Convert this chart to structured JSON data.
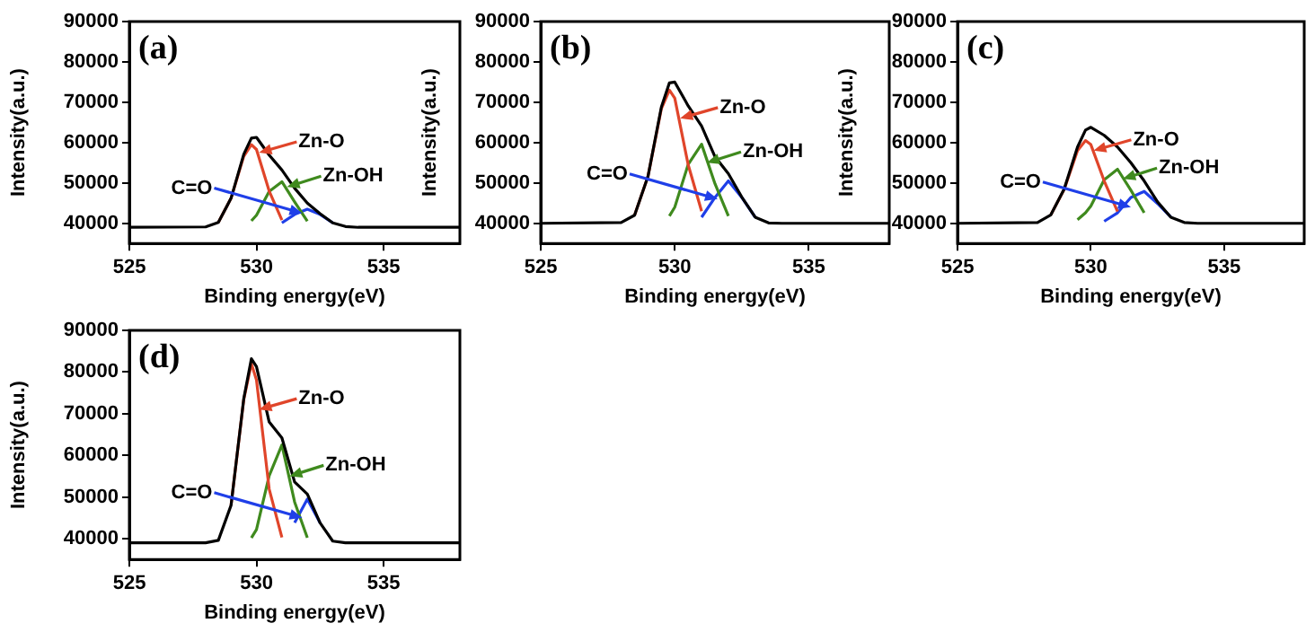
{
  "chart_data": [
    {
      "type": "line",
      "title": "(a)",
      "xlabel": "Binding energy(eV)",
      "ylabel": "Intensity(a.u.)",
      "xlim": [
        525,
        538
      ],
      "xticks": [
        525,
        530,
        535
      ],
      "ylim": [
        35000,
        90000
      ],
      "yticks": [
        40000,
        50000,
        60000,
        70000,
        80000,
        90000
      ],
      "grid": false,
      "legend": false,
      "marker": "none",
      "line_style": "solid",
      "x": [
        525,
        528,
        528.5,
        529,
        529.5,
        529.8,
        530,
        530.5,
        531,
        531.5,
        532,
        532.5,
        533,
        533.5,
        534,
        538
      ],
      "series": [
        {
          "color": "#000000",
          "values": [
            39000,
            39100,
            40200,
            46200,
            57100,
            61100,
            61300,
            56900,
            53200,
            48700,
            45000,
            42400,
            40100,
            39200,
            39000,
            39000
          ]
        },
        {
          "color": "#e0452a",
          "values": [
            null,
            null,
            40200,
            46200,
            56600,
            59500,
            58300,
            48000,
            40800,
            null,
            null,
            null,
            null,
            null,
            null,
            null
          ]
        },
        {
          "color": "#3f8a1e",
          "values": [
            null,
            null,
            null,
            null,
            null,
            40600,
            42000,
            47900,
            50300,
            45300,
            40500,
            null,
            null,
            null,
            null,
            null
          ]
        },
        {
          "color": "#1f3fe8",
          "values": [
            null,
            null,
            null,
            null,
            null,
            null,
            null,
            null,
            40100,
            42200,
            43500,
            42200,
            40100,
            null,
            null,
            null
          ]
        }
      ],
      "annotations": [
        {
          "text": "Zn-O",
          "x": 530.1,
          "y": 57500
        },
        {
          "text": "Zn-OH",
          "x": 531.2,
          "y": 49000
        },
        {
          "text": "C=O",
          "x": 531.8,
          "y": 42500
        }
      ]
    },
    {
      "type": "line",
      "title": "(b)",
      "xlabel": "Binding energy(eV)",
      "ylabel": "Intensity(a.u.)",
      "xlim": [
        525,
        538
      ],
      "xticks": [
        525,
        530,
        535
      ],
      "ylim": [
        35000,
        90000
      ],
      "yticks": [
        40000,
        50000,
        60000,
        70000,
        80000,
        90000
      ],
      "grid": false,
      "legend": false,
      "marker": "none",
      "line_style": "solid",
      "x": [
        525,
        528,
        528.5,
        529,
        529.5,
        529.8,
        530,
        530.5,
        531,
        531.5,
        532,
        532.5,
        533,
        533.5,
        534,
        538
      ],
      "series": [
        {
          "color": "#000000",
          "values": [
            40000,
            40200,
            42000,
            51600,
            68800,
            74800,
            75000,
            69100,
            64100,
            56500,
            52300,
            46500,
            41500,
            40100,
            40000,
            40000
          ]
        },
        {
          "color": "#e0452a",
          "values": [
            null,
            null,
            42000,
            51600,
            68400,
            73000,
            71000,
            54500,
            43000,
            null,
            null,
            null,
            null,
            null,
            null,
            null
          ]
        },
        {
          "color": "#3f8a1e",
          "values": [
            null,
            null,
            null,
            null,
            null,
            41800,
            44000,
            54600,
            59600,
            49800,
            41800,
            null,
            null,
            null,
            null,
            null
          ]
        },
        {
          "color": "#1f3fe8",
          "values": [
            null,
            null,
            null,
            null,
            null,
            null,
            null,
            null,
            41500,
            46400,
            50500,
            46400,
            41500,
            null,
            null,
            null
          ]
        }
      ],
      "annotations": [
        {
          "text": "Zn-O",
          "x": 530.2,
          "y": 66000
        },
        {
          "text": "Zn-OH",
          "x": 531.2,
          "y": 55000
        },
        {
          "text": "C=O",
          "x": 531.6,
          "y": 46000
        }
      ]
    },
    {
      "type": "line",
      "title": "(c)",
      "xlabel": "Binding energy(eV)",
      "ylabel": "Intensity(a.u.)",
      "xlim": [
        525,
        538
      ],
      "xticks": [
        525,
        530,
        535
      ],
      "ylim": [
        35000,
        90000
      ],
      "yticks": [
        40000,
        50000,
        60000,
        70000,
        80000,
        90000
      ],
      "grid": false,
      "legend": false,
      "marker": "none",
      "line_style": "solid",
      "x": [
        525,
        528,
        528.5,
        529,
        529.5,
        529.8,
        530,
        530.5,
        531,
        531.5,
        532,
        532.5,
        533,
        533.5,
        534,
        538
      ],
      "series": [
        {
          "color": "#000000",
          "values": [
            40000,
            40200,
            42100,
            48500,
            58900,
            63100,
            63800,
            61800,
            58900,
            55000,
            50500,
            45300,
            41500,
            40200,
            40000,
            40000
          ]
        },
        {
          "color": "#e0452a",
          "values": [
            null,
            null,
            42100,
            48400,
            58000,
            60500,
            59500,
            50500,
            42900,
            null,
            null,
            null,
            null,
            null,
            null,
            null
          ]
        },
        {
          "color": "#3f8a1e",
          "values": [
            null,
            null,
            null,
            null,
            40900,
            42600,
            44300,
            50800,
            53400,
            48200,
            42600,
            null,
            null,
            null,
            null,
            null
          ]
        },
        {
          "color": "#1f3fe8",
          "values": [
            null,
            null,
            null,
            null,
            null,
            null,
            null,
            40500,
            42600,
            46400,
            47900,
            44900,
            41500,
            null,
            null,
            null
          ]
        }
      ],
      "annotations": [
        {
          "text": "Zn-O",
          "x": 530.1,
          "y": 58000
        },
        {
          "text": "Zn-OH",
          "x": 531.2,
          "y": 51000
        },
        {
          "text": "C=O",
          "x": 531.5,
          "y": 44000
        }
      ]
    },
    {
      "type": "line",
      "title": "(d)",
      "xlabel": "Binding energy(eV)",
      "ylabel": "Intensity(a.u.)",
      "xlim": [
        525,
        538
      ],
      "xticks": [
        525,
        530,
        535
      ],
      "ylim": [
        35000,
        90000
      ],
      "yticks": [
        40000,
        50000,
        60000,
        70000,
        80000,
        90000
      ],
      "grid": false,
      "legend": false,
      "marker": "none",
      "line_style": "solid",
      "x": [
        525,
        528,
        528.5,
        529,
        529.5,
        529.8,
        530,
        530.5,
        531,
        531.5,
        532,
        532.5,
        533,
        533.5,
        534,
        538
      ],
      "series": [
        {
          "color": "#000000",
          "values": [
            39000,
            39000,
            39600,
            48000,
            73600,
            83200,
            81300,
            68000,
            64200,
            53600,
            50700,
            43800,
            39400,
            39000,
            39000,
            39000
          ]
        },
        {
          "color": "#e0452a",
          "values": [
            null,
            null,
            null,
            48000,
            73400,
            82000,
            78100,
            51900,
            40300,
            null,
            null,
            null,
            null,
            null,
            null,
            null
          ]
        },
        {
          "color": "#3f8a1e",
          "values": [
            null,
            null,
            null,
            null,
            null,
            40200,
            42200,
            55100,
            62500,
            48800,
            40200,
            null,
            null,
            null,
            null,
            null
          ]
        },
        {
          "color": "#1f3fe8",
          "values": [
            null,
            null,
            null,
            null,
            null,
            null,
            null,
            null,
            null,
            43800,
            49500,
            43800,
            null,
            null,
            null,
            null
          ]
        }
      ],
      "annotations": [
        {
          "text": "Zn-O",
          "x": 530.1,
          "y": 71000
        },
        {
          "text": "Zn-OH",
          "x": 531.3,
          "y": 55000
        },
        {
          "text": "C=O",
          "x": 531.8,
          "y": 45000
        }
      ]
    }
  ]
}
